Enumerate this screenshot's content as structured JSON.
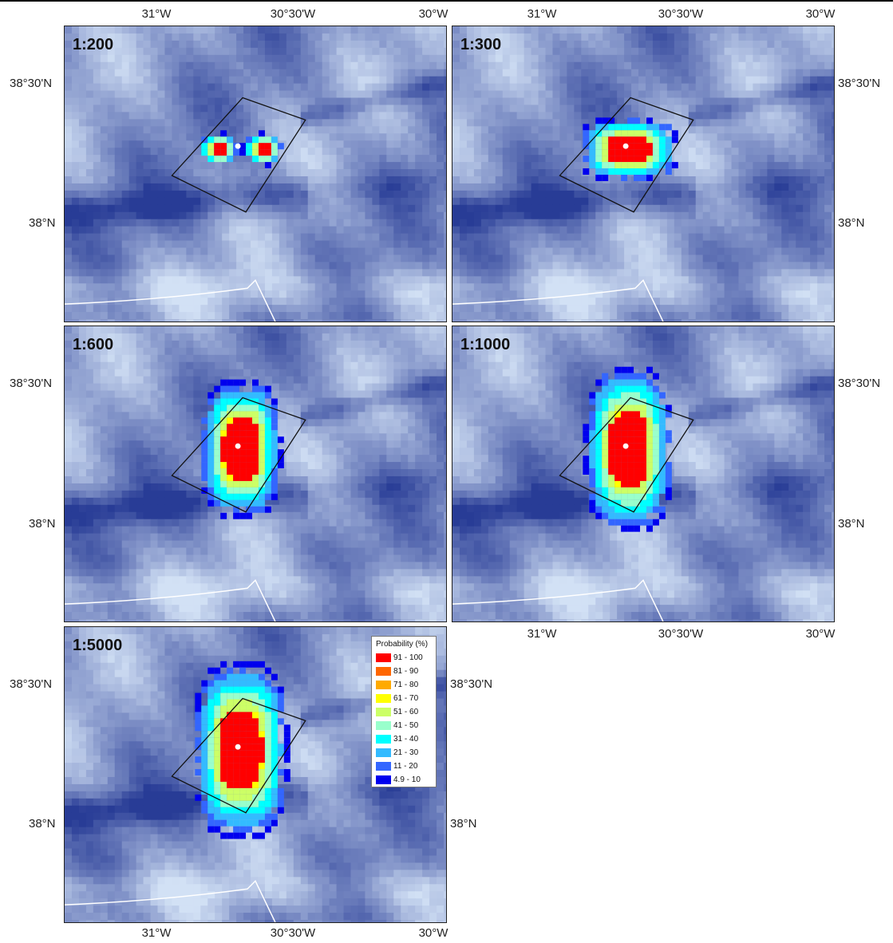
{
  "panels": [
    {
      "label": "1:200",
      "spread": 0
    },
    {
      "label": "1:300",
      "spread": 1
    },
    {
      "label": "1:600",
      "spread": 2
    },
    {
      "label": "1:1000",
      "spread": 3
    },
    {
      "label": "1:5000",
      "spread": 4
    }
  ],
  "axes": {
    "lon_labels": [
      "31°W",
      "30°30'W",
      "30°W"
    ],
    "lat_labels": [
      "38°30'N",
      "38°N"
    ]
  },
  "legend": {
    "title": "Probability (%)",
    "classes": [
      {
        "label": "91 - 100",
        "color": "#ff0000"
      },
      {
        "label": "81 - 90",
        "color": "#ff6600"
      },
      {
        "label": "71 - 80",
        "color": "#ffaa00"
      },
      {
        "label": "61 - 70",
        "color": "#ffff00"
      },
      {
        "label": "51 - 60",
        "color": "#ccff66"
      },
      {
        "label": "41 - 50",
        "color": "#99ffcc"
      },
      {
        "label": "31 - 40",
        "color": "#00ffff"
      },
      {
        "label": "21 - 30",
        "color": "#33bbff"
      },
      {
        "label": "11 - 20",
        "color": "#3366ff"
      },
      {
        "label": "4.9 - 10",
        "color": "#0000ee"
      }
    ]
  }
}
